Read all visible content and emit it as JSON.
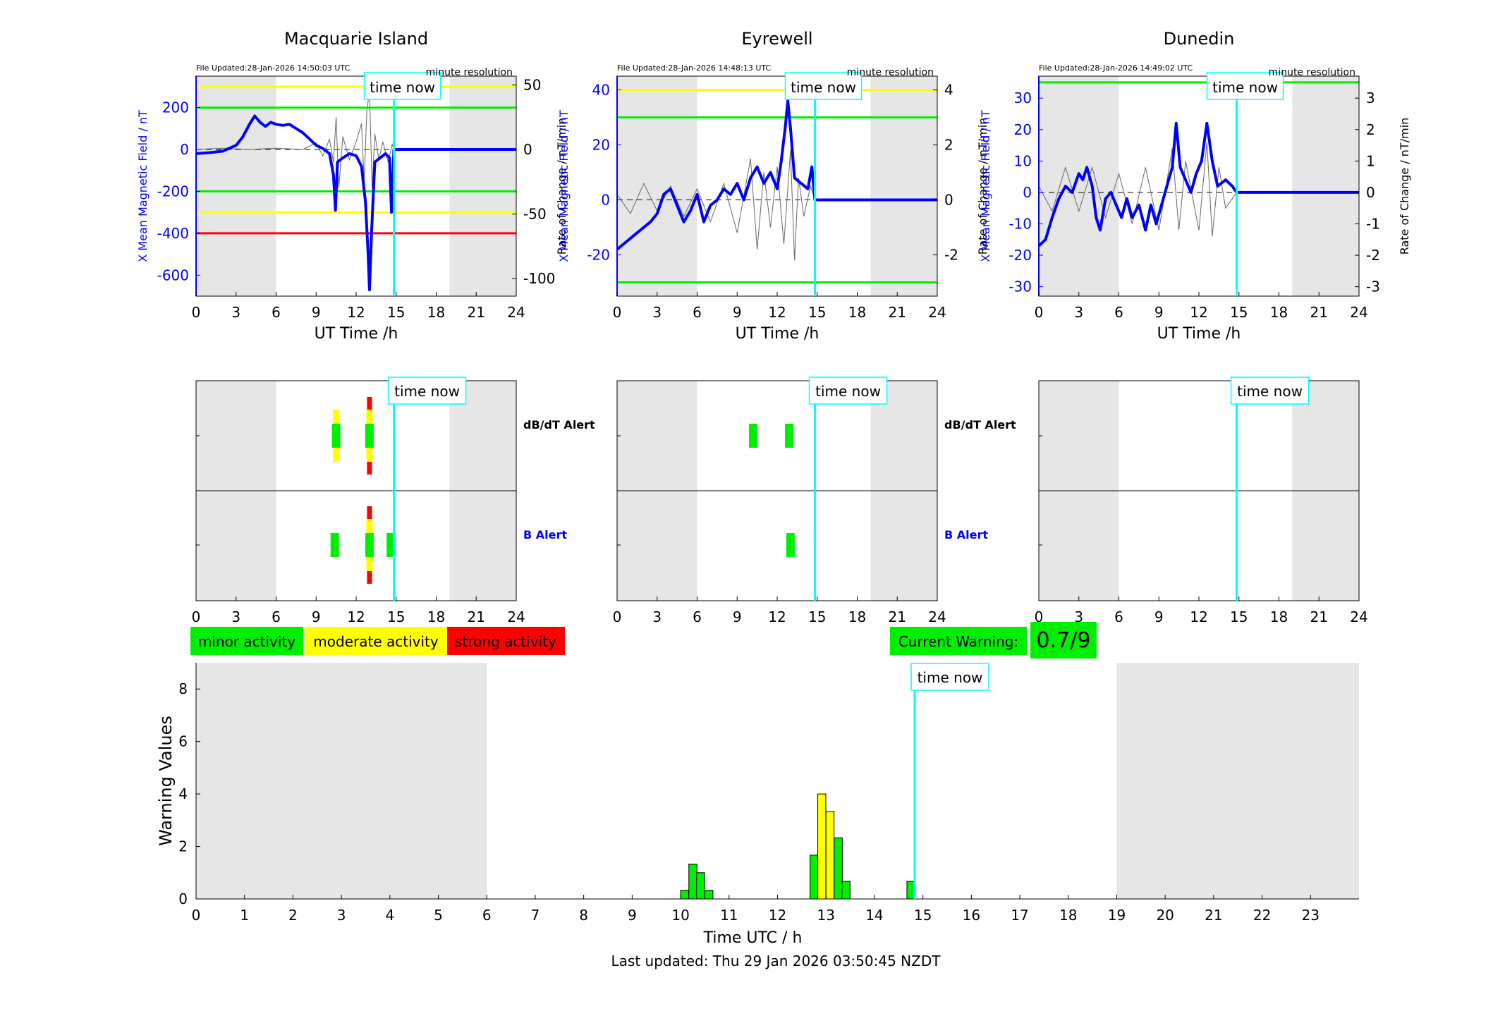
{
  "stations": [
    {
      "title": "Macquarie Island",
      "file_updated": "File Updated:28-Jan-2026 14:50:03 UTC",
      "resolution": "minute resolution",
      "time_now_label": "time now",
      "ylabel_left": "X Mean Magnetic Field / nT",
      "ylabel_right": "Rate of Change / nT/min",
      "xlabel": "UT Time /h",
      "left_ylim": [
        -700,
        350
      ],
      "left_ticks": [
        -600,
        -400,
        -200,
        0,
        200
      ],
      "right_ylim": [
        -113.6,
        56.8
      ],
      "right_ticks": [
        -100,
        -50,
        0,
        50
      ],
      "x_ticks": [
        0,
        3,
        6,
        9,
        12,
        15,
        18,
        21,
        24
      ],
      "night_shade": [
        [
          0,
          6
        ],
        [
          19,
          24
        ]
      ],
      "time_now": 14.83,
      "threshold_lines": [
        {
          "value": 300,
          "color": "#ffff00"
        },
        {
          "value": 200,
          "color": "#00ee00"
        },
        {
          "value": -200,
          "color": "#00ee00"
        },
        {
          "value": -300,
          "color": "#ffff00"
        },
        {
          "value": -400,
          "color": "#ff0000"
        }
      ],
      "mean_field_series": [
        [
          0,
          -20
        ],
        [
          1,
          -15
        ],
        [
          2,
          -8
        ],
        [
          3,
          20
        ],
        [
          3.5,
          60
        ],
        [
          4,
          120
        ],
        [
          4.4,
          160
        ],
        [
          4.8,
          130
        ],
        [
          5.2,
          110
        ],
        [
          5.6,
          130
        ],
        [
          6,
          120
        ],
        [
          6.5,
          115
        ],
        [
          7,
          120
        ],
        [
          7.5,
          100
        ],
        [
          8,
          80
        ],
        [
          8.5,
          50
        ],
        [
          9,
          20
        ],
        [
          9.5,
          5
        ],
        [
          10,
          -20
        ],
        [
          10.3,
          -120
        ],
        [
          10.45,
          -290
        ],
        [
          10.6,
          -60
        ],
        [
          11,
          -40
        ],
        [
          11.5,
          -20
        ],
        [
          12,
          -30
        ],
        [
          12.4,
          -80
        ],
        [
          12.7,
          -250
        ],
        [
          12.9,
          -500
        ],
        [
          13.0,
          -670
        ],
        [
          13.15,
          -400
        ],
        [
          13.4,
          -60
        ],
        [
          13.8,
          -40
        ],
        [
          14.2,
          -20
        ],
        [
          14.5,
          -40
        ],
        [
          14.65,
          -300
        ],
        [
          14.83,
          0
        ],
        [
          24,
          0
        ]
      ],
      "rate_series": [
        [
          0,
          0
        ],
        [
          2,
          1
        ],
        [
          4,
          0
        ],
        [
          6,
          1
        ],
        [
          8,
          0
        ],
        [
          9,
          5
        ],
        [
          9.5,
          -5
        ],
        [
          10,
          8
        ],
        [
          10.3,
          -10
        ],
        [
          10.5,
          25
        ],
        [
          10.7,
          -30
        ],
        [
          11,
          10
        ],
        [
          11.5,
          -8
        ],
        [
          12,
          6
        ],
        [
          12.4,
          20
        ],
        [
          12.6,
          -25
        ],
        [
          12.8,
          30
        ],
        [
          13,
          45
        ],
        [
          13.2,
          -30
        ],
        [
          13.4,
          12
        ],
        [
          13.7,
          -8
        ],
        [
          14,
          6
        ],
        [
          14.4,
          -10
        ],
        [
          14.7,
          4
        ],
        [
          14.83,
          0
        ]
      ]
    },
    {
      "title": "Eyrewell",
      "file_updated": "File Updated:28-Jan-2026 14:48:13 UTC",
      "resolution": "minute resolution",
      "time_now_label": "time now",
      "ylabel_left": "X Mean Magnetic Field / nT",
      "ylabel_right": "Rate of Change / nT/min",
      "xlabel": "UT Time /h",
      "left_ylim": [
        -35,
        45
      ],
      "left_ticks": [
        -20,
        0,
        20,
        40
      ],
      "right_ylim": [
        -3.5,
        4.5
      ],
      "right_ticks": [
        -2,
        0,
        2,
        4
      ],
      "x_ticks": [
        0,
        3,
        6,
        9,
        12,
        15,
        18,
        21,
        24
      ],
      "night_shade": [
        [
          0,
          6
        ],
        [
          19,
          24
        ]
      ],
      "time_now": 14.83,
      "threshold_lines": [
        {
          "value": 40,
          "color": "#ffff00"
        },
        {
          "value": 30,
          "color": "#00ee00"
        },
        {
          "value": -30,
          "color": "#00ee00"
        }
      ],
      "mean_field_series": [
        [
          0,
          -18
        ],
        [
          1,
          -14
        ],
        [
          2,
          -10
        ],
        [
          2.5,
          -8
        ],
        [
          3,
          -5
        ],
        [
          3.5,
          2
        ],
        [
          4,
          4
        ],
        [
          4.5,
          -2
        ],
        [
          5,
          -8
        ],
        [
          5.5,
          -4
        ],
        [
          6,
          2
        ],
        [
          6.5,
          -8
        ],
        [
          7,
          -2
        ],
        [
          7.5,
          0
        ],
        [
          8,
          4
        ],
        [
          8.5,
          2
        ],
        [
          9,
          6
        ],
        [
          9.5,
          0
        ],
        [
          10,
          8
        ],
        [
          10.5,
          12
        ],
        [
          11,
          6
        ],
        [
          11.5,
          10
        ],
        [
          12,
          4
        ],
        [
          12.3,
          14
        ],
        [
          12.6,
          26
        ],
        [
          12.8,
          36
        ],
        [
          13,
          26
        ],
        [
          13.3,
          8
        ],
        [
          13.8,
          6
        ],
        [
          14.3,
          4
        ],
        [
          14.6,
          12
        ],
        [
          14.83,
          0
        ],
        [
          24,
          0
        ]
      ],
      "rate_series": [
        [
          0,
          0.2
        ],
        [
          1,
          -0.5
        ],
        [
          2,
          0.6
        ],
        [
          3,
          -0.4
        ],
        [
          4,
          0.5
        ],
        [
          5,
          -0.6
        ],
        [
          6,
          0.4
        ],
        [
          7,
          -0.8
        ],
        [
          8,
          0.6
        ],
        [
          9,
          -1.2
        ],
        [
          10,
          1.5
        ],
        [
          10.5,
          -1.8
        ],
        [
          11,
          1
        ],
        [
          11.5,
          -1
        ],
        [
          12,
          1.2
        ],
        [
          12.5,
          -1.6
        ],
        [
          13,
          1.8
        ],
        [
          13.3,
          -2.2
        ],
        [
          13.6,
          0.8
        ],
        [
          14,
          -0.6
        ],
        [
          14.5,
          0.5
        ],
        [
          14.83,
          0
        ]
      ]
    },
    {
      "title": "Dunedin",
      "file_updated": "File Updated:28-Jan-2026 14:49:02 UTC",
      "resolution": "minute resolution",
      "time_now_label": "time now",
      "ylabel_left": "X Mean Magnetic Field / nT",
      "ylabel_right": "Rate of Change / nT/min",
      "xlabel": "UT Time /h",
      "left_ylim": [
        -33,
        37
      ],
      "left_ticks": [
        -30,
        -20,
        -10,
        0,
        10,
        20,
        30
      ],
      "right_ylim": [
        -3.3,
        3.7
      ],
      "right_ticks": [
        -3,
        -2,
        -1,
        0,
        1,
        2,
        3
      ],
      "x_ticks": [
        0,
        3,
        6,
        9,
        12,
        15,
        18,
        21,
        24
      ],
      "night_shade": [
        [
          0,
          6
        ],
        [
          19,
          24
        ]
      ],
      "time_now": 14.83,
      "threshold_lines": [
        {
          "value": 35,
          "color": "#00ee00"
        }
      ],
      "mean_field_series": [
        [
          0,
          -17
        ],
        [
          0.5,
          -15
        ],
        [
          1,
          -8
        ],
        [
          1.5,
          -2
        ],
        [
          2,
          2
        ],
        [
          2.5,
          0
        ],
        [
          3,
          6
        ],
        [
          3.3,
          4
        ],
        [
          3.6,
          8
        ],
        [
          4,
          2
        ],
        [
          4.3,
          -8
        ],
        [
          4.6,
          -12
        ],
        [
          5,
          -2
        ],
        [
          5.4,
          0
        ],
        [
          5.8,
          -4
        ],
        [
          6.2,
          -8
        ],
        [
          6.6,
          -2
        ],
        [
          7,
          -8
        ],
        [
          7.5,
          -4
        ],
        [
          8,
          -12
        ],
        [
          8.4,
          -4
        ],
        [
          8.8,
          -10
        ],
        [
          9.2,
          -4
        ],
        [
          9.6,
          2
        ],
        [
          10,
          8
        ],
        [
          10.3,
          22
        ],
        [
          10.6,
          8
        ],
        [
          11,
          4
        ],
        [
          11.4,
          0
        ],
        [
          11.8,
          6
        ],
        [
          12.2,
          10
        ],
        [
          12.6,
          22
        ],
        [
          13,
          10
        ],
        [
          13.4,
          2
        ],
        [
          14,
          4
        ],
        [
          14.5,
          2
        ],
        [
          14.83,
          0
        ],
        [
          24,
          0
        ]
      ],
      "rate_series": [
        [
          0,
          0.2
        ],
        [
          1,
          -0.6
        ],
        [
          2,
          0.8
        ],
        [
          3,
          -0.6
        ],
        [
          4,
          0.8
        ],
        [
          5,
          -0.8
        ],
        [
          6,
          0.6
        ],
        [
          7,
          -1
        ],
        [
          8,
          0.8
        ],
        [
          9,
          -1.2
        ],
        [
          10,
          1.4
        ],
        [
          10.5,
          -1.2
        ],
        [
          11,
          1
        ],
        [
          12,
          -1.2
        ],
        [
          12.6,
          1.6
        ],
        [
          13,
          -1.4
        ],
        [
          13.5,
          0.8
        ],
        [
          14,
          -0.5
        ],
        [
          14.83,
          0
        ]
      ]
    }
  ],
  "alert_panels": [
    {
      "station": "Macquarie Island",
      "time_now_label": "time now",
      "dbdt_label": "dB/dT Alert",
      "b_label": "B Alert",
      "dbdt_blocks": [
        {
          "t": 10.5,
          "level": "moderate"
        },
        {
          "t": 10.5,
          "level": "minor"
        },
        {
          "t": 13.0,
          "level": "strong"
        },
        {
          "t": 13.0,
          "level": "moderate"
        },
        {
          "t": 13.0,
          "level": "minor"
        }
      ],
      "b_blocks": [
        {
          "t": 10.4,
          "level": "minor"
        },
        {
          "t": 13.0,
          "level": "strong"
        },
        {
          "t": 13.0,
          "level": "moderate"
        },
        {
          "t": 13.0,
          "level": "minor"
        },
        {
          "t": 14.6,
          "level": "minor"
        }
      ]
    },
    {
      "station": "Eyrewell",
      "time_now_label": "time now",
      "dbdt_label": "dB/dT Alert",
      "b_label": "B Alert",
      "dbdt_blocks": [
        {
          "t": 10.2,
          "level": "minor"
        },
        {
          "t": 12.9,
          "level": "minor"
        }
      ],
      "b_blocks": [
        {
          "t": 13.0,
          "level": "minor"
        }
      ]
    },
    {
      "station": "Dunedin",
      "time_now_label": "time now",
      "dbdt_label": "",
      "b_label": "",
      "dbdt_blocks": [],
      "b_blocks": []
    }
  ],
  "legend": {
    "minor": "minor activity",
    "moderate": "moderate activity",
    "strong": "strong activity"
  },
  "current_warning": {
    "label": "Current Warning:",
    "value": "0.7/9"
  },
  "warning_chart": {
    "ylabel": "Warning Values",
    "xlabel": "Time UTC / h",
    "time_now_label": "time now",
    "time_now": 14.83,
    "ylim": [
      0,
      9
    ],
    "yticks": [
      0,
      2,
      4,
      6,
      8
    ],
    "xlim": [
      0,
      24
    ],
    "xticks": [
      0,
      1,
      2,
      3,
      4,
      5,
      6,
      7,
      8,
      9,
      10,
      11,
      12,
      13,
      14,
      15,
      16,
      17,
      18,
      19,
      20,
      21,
      22,
      23
    ],
    "night_shade": [
      [
        0,
        6
      ],
      [
        19,
        24
      ]
    ],
    "bars": [
      {
        "t": 10.0,
        "value": 0.33,
        "level": "minor"
      },
      {
        "t": 10.17,
        "value": 1.33,
        "level": "minor"
      },
      {
        "t": 10.33,
        "value": 1.0,
        "level": "minor"
      },
      {
        "t": 10.5,
        "value": 0.33,
        "level": "minor"
      },
      {
        "t": 12.67,
        "value": 1.67,
        "level": "minor"
      },
      {
        "t": 12.83,
        "value": 4.0,
        "level": "moderate"
      },
      {
        "t": 13.0,
        "value": 3.33,
        "level": "moderate"
      },
      {
        "t": 13.17,
        "value": 2.33,
        "level": "minor"
      },
      {
        "t": 13.33,
        "value": 0.67,
        "level": "minor"
      },
      {
        "t": 14.67,
        "value": 0.67,
        "level": "minor"
      }
    ]
  },
  "last_updated": "Last updated: Thu 29 Jan 2026 03:50:45 NZDT",
  "colors": {
    "minor": "#00ee00",
    "moderate": "#ffff00",
    "strong": "#ff0000",
    "mean_field": "#0000ff",
    "time_now": "#00ffff",
    "night_shade": "#e6e6e6"
  }
}
